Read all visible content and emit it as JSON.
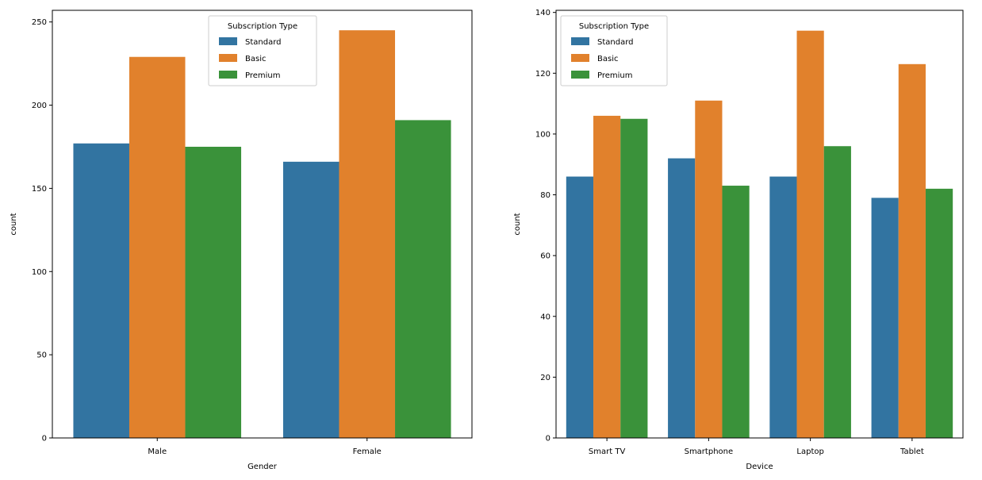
{
  "chart_data": [
    {
      "type": "bar",
      "title": "",
      "xlabel": "Gender",
      "ylabel": "count",
      "categories": [
        "Male",
        "Female"
      ],
      "ylim": [
        0,
        257
      ],
      "yticks": [
        0,
        50,
        100,
        150,
        200,
        250
      ],
      "grid": false,
      "legend": {
        "title": "Subscription Type",
        "placement": "top-center"
      },
      "series": [
        {
          "name": "Standard",
          "color": "#3274a1",
          "values": [
            177,
            166
          ]
        },
        {
          "name": "Basic",
          "color": "#e1812c",
          "values": [
            229,
            245
          ]
        },
        {
          "name": "Premium",
          "color": "#3a923a",
          "values": [
            175,
            191
          ]
        }
      ]
    },
    {
      "type": "bar",
      "title": "",
      "xlabel": "Device",
      "ylabel": "count",
      "categories": [
        "Smart TV",
        "Smartphone",
        "Laptop",
        "Tablet"
      ],
      "ylim": [
        0,
        140.7
      ],
      "yticks": [
        0,
        20,
        40,
        60,
        80,
        100,
        120,
        140
      ],
      "grid": false,
      "legend": {
        "title": "Subscription Type",
        "placement": "top-left"
      },
      "series": [
        {
          "name": "Standard",
          "color": "#3274a1",
          "values": [
            86,
            92,
            86,
            79
          ]
        },
        {
          "name": "Basic",
          "color": "#e1812c",
          "values": [
            106,
            111,
            134,
            123
          ]
        },
        {
          "name": "Premium",
          "color": "#3a923a",
          "values": [
            105,
            83,
            96,
            82
          ]
        }
      ]
    }
  ]
}
